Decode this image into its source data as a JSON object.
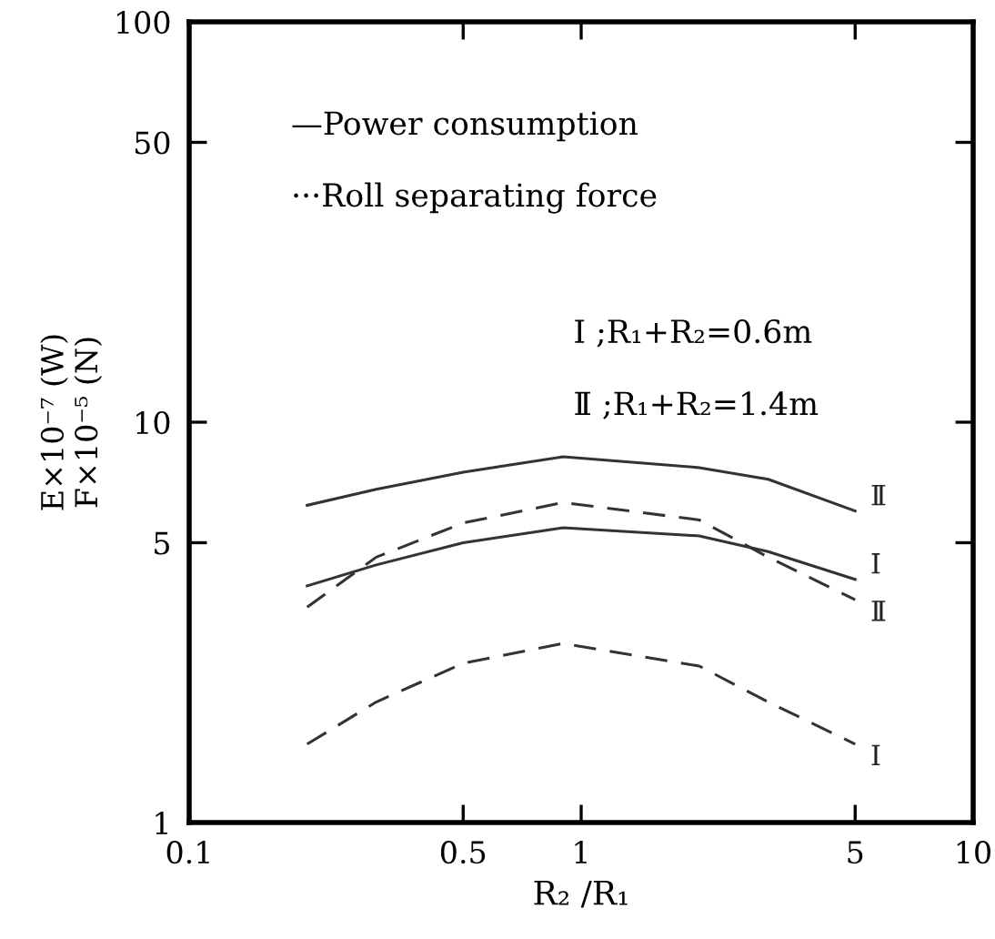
{
  "chart_data": {
    "type": "line",
    "xlabel": "R₂ /R₁",
    "ylabel": "E×10⁻⁷ (W)\nF×10⁻⁵ (N)",
    "log": "xy",
    "xlim": [
      0.1,
      10
    ],
    "xticks": [
      0.1,
      0.5,
      1,
      5,
      10
    ],
    "ylim": [
      1,
      100
    ],
    "yticks": [
      1,
      5,
      10,
      50,
      100
    ],
    "grid": false,
    "marker": "none",
    "x": [
      0.2,
      0.3,
      0.5,
      0.9,
      2,
      3,
      5
    ],
    "series": [
      {
        "name": "Ⅱ",
        "color": "#333333",
        "line_style": "solid",
        "values": [
          6.2,
          6.8,
          7.5,
          8.2,
          7.7,
          7.2,
          6.0
        ]
      },
      {
        "name": "Ⅰ",
        "color": "#333333",
        "line_style": "solid",
        "values": [
          3.9,
          4.4,
          5.0,
          5.45,
          5.2,
          4.75,
          4.05
        ]
      },
      {
        "name": "Ⅱ",
        "color": "#333333",
        "line_style": "dashed",
        "values": [
          3.45,
          4.6,
          5.6,
          6.3,
          5.7,
          4.6,
          3.6
        ]
      },
      {
        "name": "Ⅰ",
        "color": "#333333",
        "line_style": "dashed",
        "values": [
          1.57,
          2.0,
          2.5,
          2.8,
          2.46,
          2.0,
          1.57
        ]
      }
    ],
    "annotations": [
      "—Power consumption",
      "···Roll separating force",
      "Ⅰ ;R₁+R₂=0.6m",
      "Ⅱ ;R₁+R₂=1.4m"
    ]
  }
}
